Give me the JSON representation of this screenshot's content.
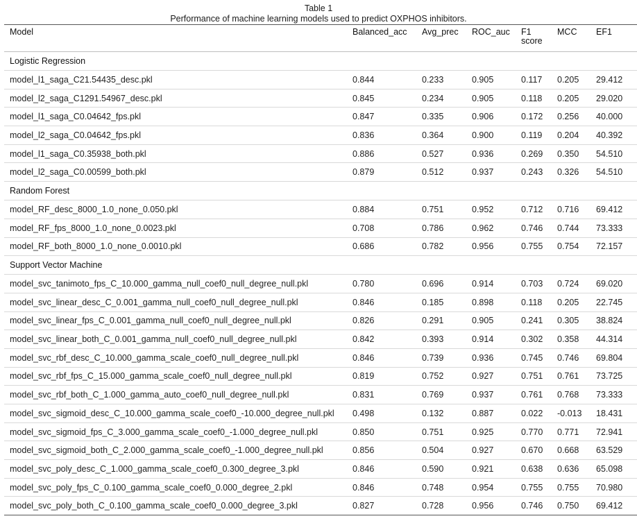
{
  "caption": {
    "title": "Table 1",
    "subtitle": "Performance of machine learning models used to predict OXPHOS inhibitors."
  },
  "columns": [
    "Model",
    "Balanced_acc",
    "Avg_prec",
    "ROC_auc",
    "F1 score",
    "MCC",
    "EF1"
  ],
  "column_lines": {
    "f1": [
      "F1",
      "score"
    ]
  },
  "groups": [
    {
      "name": "Logistic Regression",
      "rows": [
        [
          "model_l1_saga_C21.54435_desc.pkl",
          "0.844",
          "0.233",
          "0.905",
          "0.117",
          "0.205",
          "29.412"
        ],
        [
          "model_l2_saga_C1291.54967_desc.pkl",
          "0.845",
          "0.234",
          "0.905",
          "0.118",
          "0.205",
          "29.020"
        ],
        [
          "model_l1_saga_C0.04642_fps.pkl",
          "0.847",
          "0.335",
          "0.906",
          "0.172",
          "0.256",
          "40.000"
        ],
        [
          "model_l2_saga_C0.04642_fps.pkl",
          "0.836",
          "0.364",
          "0.900",
          "0.119",
          "0.204",
          "40.392"
        ],
        [
          "model_l1_saga_C0.35938_both.pkl",
          "0.886",
          "0.527",
          "0.936",
          "0.269",
          "0.350",
          "54.510"
        ],
        [
          "model_l2_saga_C0.00599_both.pkl",
          "0.879",
          "0.512",
          "0.937",
          "0.243",
          "0.326",
          "54.510"
        ]
      ]
    },
    {
      "name": "Random Forest",
      "rows": [
        [
          "model_RF_desc_8000_1.0_none_0.050.pkl",
          "0.884",
          "0.751",
          "0.952",
          "0.712",
          "0.716",
          "69.412"
        ],
        [
          "model_RF_fps_8000_1.0_none_0.0023.pkl",
          "0.708",
          "0.786",
          "0.962",
          "0.746",
          "0.744",
          "73.333"
        ],
        [
          "model_RF_both_8000_1.0_none_0.0010.pkl",
          "0.686",
          "0.782",
          "0.956",
          "0.755",
          "0.754",
          "72.157"
        ]
      ]
    },
    {
      "name": "Support Vector Machine",
      "rows": [
        [
          "model_svc_tanimoto_fps_C_10.000_gamma_null_coef0_null_degree_null.pkl",
          "0.780",
          "0.696",
          "0.914",
          "0.703",
          "0.724",
          "69.020"
        ],
        [
          "model_svc_linear_desc_C_0.001_gamma_null_coef0_null_degree_null.pkl",
          "0.846",
          "0.185",
          "0.898",
          "0.118",
          "0.205",
          "22.745"
        ],
        [
          "model_svc_linear_fps_C_0.001_gamma_null_coef0_null_degree_null.pkl",
          "0.826",
          "0.291",
          "0.905",
          "0.241",
          "0.305",
          "38.824"
        ],
        [
          "model_svc_linear_both_C_0.001_gamma_null_coef0_null_degree_null.pkl",
          "0.842",
          "0.393",
          "0.914",
          "0.302",
          "0.358",
          "44.314"
        ],
        [
          "model_svc_rbf_desc_C_10.000_gamma_scale_coef0_null_degree_null.pkl",
          "0.846",
          "0.739",
          "0.936",
          "0.745",
          "0.746",
          "69.804"
        ],
        [
          "model_svc_rbf_fps_C_15.000_gamma_scale_coef0_null_degree_null.pkl",
          "0.819",
          "0.752",
          "0.927",
          "0.751",
          "0.761",
          "73.725"
        ],
        [
          "model_svc_rbf_both_C_1.000_gamma_auto_coef0_null_degree_null.pkl",
          "0.831",
          "0.769",
          "0.937",
          "0.761",
          "0.768",
          "73.333"
        ],
        [
          "model_svc_sigmoid_desc_C_10.000_gamma_scale_coef0_-10.000_degree_null.pkl",
          "0.498",
          "0.132",
          "0.887",
          "0.022",
          "-0.013",
          "18.431"
        ],
        [
          "model_svc_sigmoid_fps_C_3.000_gamma_scale_coef0_-1.000_degree_null.pkl",
          "0.850",
          "0.751",
          "0.925",
          "0.770",
          "0.771",
          "72.941"
        ],
        [
          "model_svc_sigmoid_both_C_2.000_gamma_scale_coef0_-1.000_degree_null.pkl",
          "0.856",
          "0.504",
          "0.927",
          "0.670",
          "0.668",
          "63.529"
        ],
        [
          "model_svc_poly_desc_C_1.000_gamma_scale_coef0_0.300_degree_3.pkl",
          "0.846",
          "0.590",
          "0.921",
          "0.638",
          "0.636",
          "65.098"
        ],
        [
          "model_svc_poly_fps_C_0.100_gamma_scale_coef0_0.000_degree_2.pkl",
          "0.846",
          "0.748",
          "0.954",
          "0.755",
          "0.755",
          "70.980"
        ],
        [
          "model_svc_poly_both_C_0.100_gamma_scale_coef0_0.000_degree_3.pkl",
          "0.827",
          "0.728",
          "0.956",
          "0.746",
          "0.750",
          "69.412"
        ]
      ]
    }
  ]
}
